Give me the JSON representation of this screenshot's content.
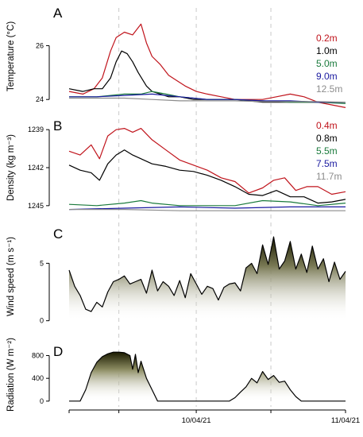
{
  "chart_data": [
    {
      "type": "line",
      "panel": "A",
      "ylabel": "Temperature (°C)",
      "yticks": [
        24,
        26
      ],
      "ylim": [
        23.8,
        27.4
      ],
      "series": [
        {
          "name": "0.2m",
          "color": "#c0141c",
          "x": [
            0,
            0.05,
            0.09,
            0.12,
            0.15,
            0.17,
            0.2,
            0.23,
            0.26,
            0.28,
            0.3,
            0.33,
            0.36,
            0.39,
            0.42,
            0.46,
            0.5,
            0.55,
            0.6,
            0.65,
            0.7,
            0.75,
            0.8,
            0.85,
            0.9,
            0.95,
            1.0
          ],
          "y": [
            24.3,
            24.2,
            24.4,
            24.8,
            25.8,
            26.3,
            26.5,
            26.4,
            26.8,
            26.1,
            25.6,
            25.3,
            24.9,
            24.7,
            24.5,
            24.3,
            24.2,
            24.1,
            24.0,
            24.0,
            24.0,
            24.1,
            24.2,
            24.1,
            23.9,
            23.8,
            23.7
          ]
        },
        {
          "name": "1.0m",
          "color": "#000000",
          "x": [
            0,
            0.05,
            0.09,
            0.12,
            0.15,
            0.17,
            0.19,
            0.21,
            0.23,
            0.25,
            0.28,
            0.3,
            0.33,
            0.36,
            0.4,
            0.45,
            0.5,
            0.6,
            0.7,
            0.8,
            0.9,
            1.0
          ],
          "y": [
            24.4,
            24.3,
            24.4,
            24.4,
            24.8,
            25.4,
            25.8,
            25.7,
            25.4,
            25.0,
            24.5,
            24.3,
            24.2,
            24.1,
            24.1,
            24.0,
            24.0,
            24.0,
            23.9,
            23.9,
            23.9,
            23.9
          ]
        },
        {
          "name": "5.0m",
          "color": "#1a7a3c",
          "x": [
            0,
            0.1,
            0.2,
            0.26,
            0.3,
            0.35,
            0.4,
            0.5,
            0.6,
            0.7,
            0.8,
            0.9,
            1.0
          ],
          "y": [
            24.1,
            24.1,
            24.2,
            24.2,
            24.3,
            24.2,
            24.1,
            24.0,
            24.0,
            23.95,
            23.9,
            23.9,
            23.85
          ]
        },
        {
          "name": "9.0m",
          "color": "#1a1aa0",
          "x": [
            0,
            0.1,
            0.2,
            0.3,
            0.4,
            0.5,
            0.6,
            0.7,
            0.8,
            0.9,
            1.0
          ],
          "y": [
            24.1,
            24.1,
            24.15,
            24.2,
            24.1,
            24.0,
            24.0,
            23.95,
            23.95,
            23.9,
            23.9
          ]
        },
        {
          "name": "12.5m",
          "color": "#8c8c8c",
          "x": [
            0,
            0.1,
            0.2,
            0.3,
            0.4,
            0.5,
            0.6,
            0.7,
            0.8,
            0.9,
            1.0
          ],
          "y": [
            24.05,
            24.05,
            24.05,
            24.0,
            23.95,
            23.95,
            23.95,
            23.92,
            23.92,
            23.92,
            23.9
          ]
        }
      ]
    },
    {
      "type": "line",
      "panel": "B",
      "ylabel": "Density (kg m⁻³)",
      "yticks": [
        1239,
        1242,
        1245
      ],
      "yticklabels": [
        "1239",
        "1242",
        "1245"
      ],
      "ylim": [
        1238.3,
        1245.7
      ],
      "yinverted": true,
      "series": [
        {
          "name": "0.4m",
          "color": "#c0141c",
          "x": [
            0,
            0.04,
            0.08,
            0.11,
            0.14,
            0.17,
            0.2,
            0.23,
            0.26,
            0.3,
            0.35,
            0.4,
            0.45,
            0.5,
            0.55,
            0.6,
            0.65,
            0.7,
            0.74,
            0.78,
            0.82,
            0.86,
            0.9,
            0.95,
            1.0
          ],
          "y": [
            1240.7,
            1241.0,
            1240.2,
            1241.3,
            1239.5,
            1239.0,
            1238.9,
            1239.2,
            1238.9,
            1239.8,
            1240.6,
            1241.4,
            1241.8,
            1242.2,
            1242.8,
            1243.1,
            1244.0,
            1243.6,
            1243.0,
            1242.8,
            1243.8,
            1243.5,
            1243.5,
            1244.1,
            1243.9
          ]
        },
        {
          "name": "0.8m",
          "color": "#000000",
          "x": [
            0,
            0.04,
            0.08,
            0.11,
            0.14,
            0.17,
            0.2,
            0.23,
            0.26,
            0.3,
            0.35,
            0.4,
            0.45,
            0.5,
            0.55,
            0.6,
            0.65,
            0.7,
            0.75,
            0.8,
            0.85,
            0.9,
            0.95,
            1.0
          ],
          "y": [
            1241.8,
            1242.2,
            1242.4,
            1243.0,
            1241.7,
            1241.0,
            1240.6,
            1241.0,
            1241.3,
            1241.7,
            1241.9,
            1242.2,
            1242.3,
            1242.6,
            1243.0,
            1243.5,
            1244.1,
            1244.2,
            1243.8,
            1244.3,
            1244.3,
            1244.8,
            1244.7,
            1244.5
          ]
        },
        {
          "name": "5.5m",
          "color": "#1a7a3c",
          "x": [
            0,
            0.1,
            0.2,
            0.26,
            0.3,
            0.4,
            0.5,
            0.6,
            0.7,
            0.8,
            0.9,
            1.0
          ],
          "y": [
            1244.9,
            1245.0,
            1244.8,
            1244.6,
            1244.8,
            1245.0,
            1245.0,
            1245.0,
            1244.6,
            1244.7,
            1245.0,
            1244.8
          ]
        },
        {
          "name": "7.5m",
          "color": "#1a1aa0",
          "x": [
            0,
            0.2,
            0.4,
            0.6,
            0.8,
            1.0
          ],
          "y": [
            1245.3,
            1245.2,
            1245.1,
            1245.2,
            1245.1,
            1245.1
          ]
        },
        {
          "name": "11.7m",
          "color": "#8c8c8c",
          "x": [
            0,
            0.2,
            0.4,
            0.6,
            0.8,
            1.0
          ],
          "y": [
            1245.3,
            1245.3,
            1245.4,
            1245.4,
            1245.4,
            1245.4
          ]
        }
      ]
    },
    {
      "type": "area",
      "panel": "C",
      "ylabel": "Wind speed (m s⁻¹)",
      "yticks": [
        0,
        5
      ],
      "ylim": [
        -0.3,
        8
      ],
      "series": [
        {
          "name": "",
          "color": "#000000",
          "x": [
            0,
            0.02,
            0.04,
            0.06,
            0.08,
            0.1,
            0.12,
            0.14,
            0.16,
            0.18,
            0.2,
            0.22,
            0.24,
            0.26,
            0.28,
            0.3,
            0.32,
            0.34,
            0.36,
            0.38,
            0.4,
            0.42,
            0.44,
            0.46,
            0.48,
            0.5,
            0.52,
            0.54,
            0.56,
            0.58,
            0.6,
            0.62,
            0.64,
            0.66,
            0.68,
            0.7,
            0.72,
            0.74,
            0.76,
            0.78,
            0.8,
            0.82,
            0.84,
            0.86,
            0.88,
            0.9,
            0.92,
            0.94,
            0.96,
            0.98,
            1.0
          ],
          "y": [
            4.4,
            3.0,
            2.2,
            1.0,
            0.8,
            1.6,
            1.2,
            2.5,
            3.4,
            3.6,
            3.9,
            3.2,
            3.4,
            3.6,
            2.4,
            4.4,
            2.6,
            3.4,
            3.0,
            2.2,
            3.5,
            2.0,
            4.1,
            3.2,
            2.3,
            3.0,
            2.8,
            1.8,
            2.9,
            3.2,
            3.3,
            2.6,
            4.6,
            5.0,
            4.1,
            6.6,
            4.9,
            7.3,
            4.5,
            5.2,
            6.9,
            4.5,
            5.8,
            4.2,
            6.5,
            4.5,
            5.4,
            3.4,
            5.1,
            3.6,
            4.3
          ]
        }
      ]
    },
    {
      "type": "area",
      "panel": "D",
      "ylabel": "Radiation (W m⁻²)",
      "yticks": [
        0,
        400,
        800
      ],
      "ylim": [
        -30,
        960
      ],
      "series": [
        {
          "name": "",
          "color": "#000000",
          "x": [
            0,
            0.04,
            0.06,
            0.08,
            0.1,
            0.12,
            0.14,
            0.16,
            0.18,
            0.2,
            0.22,
            0.23,
            0.24,
            0.25,
            0.26,
            0.28,
            0.3,
            0.32,
            0.34,
            0.36,
            0.58,
            0.6,
            0.62,
            0.64,
            0.66,
            0.68,
            0.7,
            0.72,
            0.74,
            0.76,
            0.78,
            0.8,
            0.82,
            0.84,
            1.0
          ],
          "y": [
            0,
            0,
            200,
            500,
            680,
            780,
            830,
            860,
            860,
            850,
            800,
            560,
            820,
            500,
            700,
            400,
            200,
            0,
            0,
            0,
            0,
            60,
            160,
            250,
            400,
            320,
            520,
            380,
            450,
            330,
            350,
            200,
            80,
            0,
            0
          ]
        }
      ]
    }
  ],
  "x_axis": {
    "tick_labels": [
      "10/04/21",
      "11/04/21"
    ]
  }
}
